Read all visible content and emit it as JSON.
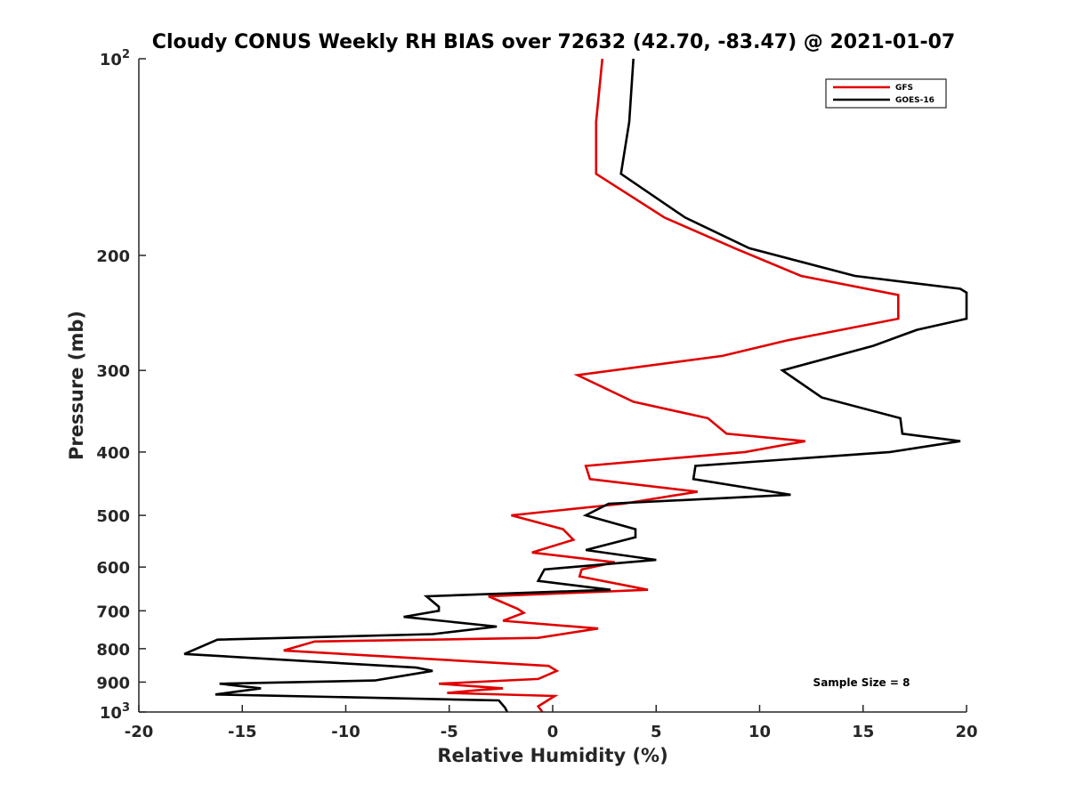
{
  "chart_data": {
    "type": "line",
    "title": "Cloudy CONUS Weekly RH BIAS over 72632 (42.70, -83.47) @ 2021-01-07",
    "xlabel": "Relative Humidity (%)",
    "ylabel": "Pressure (mb)",
    "xlim": [
      -20,
      20
    ],
    "ylim": [
      1000,
      100
    ],
    "yscale": "log",
    "y_reversed": true,
    "x_ticks": [
      "-20",
      "-15",
      "-10",
      "-5",
      "0",
      "5",
      "10",
      "15",
      "20"
    ],
    "y_ticks": [
      {
        "value": 100,
        "base": "10",
        "exp": "2"
      },
      {
        "value": 200,
        "label": "200"
      },
      {
        "value": 300,
        "label": "300"
      },
      {
        "value": 400,
        "label": "400"
      },
      {
        "value": 500,
        "label": "500"
      },
      {
        "value": 600,
        "label": "600"
      },
      {
        "value": 700,
        "label": "700"
      },
      {
        "value": 800,
        "label": "800"
      },
      {
        "value": 900,
        "label": "900"
      },
      {
        "value": 1000,
        "base": "10",
        "exp": "3"
      }
    ],
    "grid": false,
    "legend": "top-right",
    "annotation": "Sample Size = 8",
    "series": [
      {
        "name": "GFS",
        "color": "#e00000",
        "points": [
          [
            2.4,
            100
          ],
          [
            2.1,
            125
          ],
          [
            2.1,
            150
          ],
          [
            5.4,
            175
          ],
          [
            8.8,
            195
          ],
          [
            12.0,
            215
          ],
          [
            16.7,
            230
          ],
          [
            16.7,
            250
          ],
          [
            11.3,
            270
          ],
          [
            8.2,
            285
          ],
          [
            1.2,
            305
          ],
          [
            3.9,
            335
          ],
          [
            7.5,
            355
          ],
          [
            8.4,
            375
          ],
          [
            12.2,
            385
          ],
          [
            9.3,
            400
          ],
          [
            1.6,
            420
          ],
          [
            1.8,
            440
          ],
          [
            7.0,
            460
          ],
          [
            3.4,
            480
          ],
          [
            -2.0,
            500
          ],
          [
            0.5,
            525
          ],
          [
            1.0,
            545
          ],
          [
            -1.0,
            570
          ],
          [
            3.0,
            590
          ],
          [
            1.4,
            605
          ],
          [
            1.3,
            620
          ],
          [
            4.6,
            650
          ],
          [
            -3.1,
            665
          ],
          [
            -1.7,
            695
          ],
          [
            -1.4,
            705
          ],
          [
            -2.4,
            725
          ],
          [
            2.2,
            745
          ],
          [
            -0.7,
            770
          ],
          [
            -11.5,
            780
          ],
          [
            -13.0,
            805
          ],
          [
            -0.2,
            850
          ],
          [
            0.2,
            865
          ],
          [
            -0.7,
            890
          ],
          [
            -5.5,
            905
          ],
          [
            -2.4,
            920
          ],
          [
            -3.4,
            925
          ],
          [
            -5.1,
            935
          ],
          [
            0.1,
            945
          ],
          [
            -0.7,
            980
          ],
          [
            -0.5,
            1000
          ]
        ]
      },
      {
        "name": "GOES-16",
        "color": "#000000",
        "points": [
          [
            3.9,
            100
          ],
          [
            3.7,
            125
          ],
          [
            3.3,
            150
          ],
          [
            6.4,
            175
          ],
          [
            9.5,
            195
          ],
          [
            14.6,
            215
          ],
          [
            19.7,
            225
          ],
          [
            20.0,
            228
          ],
          [
            20.0,
            250
          ],
          [
            17.6,
            260
          ],
          [
            15.5,
            275
          ],
          [
            11.1,
            300
          ],
          [
            13.0,
            330
          ],
          [
            16.8,
            355
          ],
          [
            16.9,
            375
          ],
          [
            19.7,
            385
          ],
          [
            16.3,
            400
          ],
          [
            6.9,
            420
          ],
          [
            6.8,
            440
          ],
          [
            11.5,
            465
          ],
          [
            2.7,
            480
          ],
          [
            1.6,
            500
          ],
          [
            4.0,
            525
          ],
          [
            4.0,
            540
          ],
          [
            1.6,
            565
          ],
          [
            5.0,
            585
          ],
          [
            -0.4,
            605
          ],
          [
            -0.7,
            630
          ],
          [
            2.8,
            650
          ],
          [
            -6.1,
            665
          ],
          [
            -5.5,
            690
          ],
          [
            -5.5,
            700
          ],
          [
            -7.2,
            715
          ],
          [
            -2.7,
            740
          ],
          [
            -5.8,
            760
          ],
          [
            -16.2,
            775
          ],
          [
            -17.8,
            815
          ],
          [
            -6.6,
            855
          ],
          [
            -5.8,
            865
          ],
          [
            -8.6,
            895
          ],
          [
            -16.1,
            905
          ],
          [
            -14.1,
            920
          ],
          [
            -16.3,
            940
          ],
          [
            -2.6,
            960
          ],
          [
            -2.3,
            985
          ],
          [
            -2.2,
            1000
          ]
        ]
      }
    ]
  }
}
